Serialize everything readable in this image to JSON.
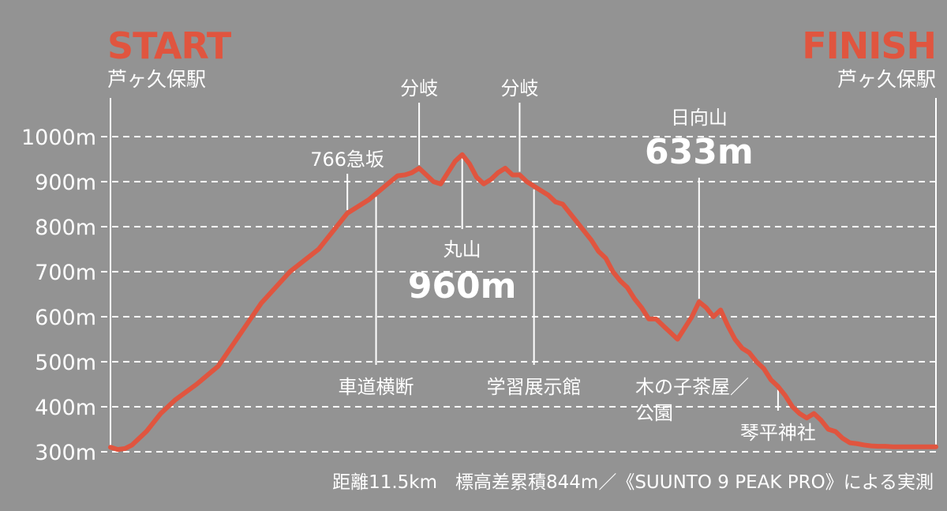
{
  "colors": {
    "background": "#939393",
    "accent": "#e0553f",
    "text": "#ffffff"
  },
  "chart_data": {
    "type": "area",
    "grid": true,
    "ylim": [
      300,
      1000
    ],
    "y_ticks": [
      {
        "value": 1000,
        "label": "1000m"
      },
      {
        "value": 900,
        "label": "900m"
      },
      {
        "value": 800,
        "label": "800m"
      },
      {
        "value": 700,
        "label": "700m"
      },
      {
        "value": 600,
        "label": "600m"
      },
      {
        "value": 500,
        "label": "500m"
      },
      {
        "value": 400,
        "label": "400m"
      },
      {
        "value": 300,
        "label": "300m"
      }
    ],
    "xlim": [
      0,
      11.5
    ],
    "start": {
      "label": "START",
      "station": "芦ヶ久保駅"
    },
    "finish": {
      "label": "FINISH",
      "station": "芦ヶ久保駅"
    },
    "note": "距離11.5km　標高差累積844m／《SUUNTO 9 PEAK PRO》による実測",
    "series": [
      {
        "x": [
          0.0,
          0.1,
          0.2,
          0.3,
          0.5,
          0.7,
          0.9,
          1.2,
          1.5,
          1.8,
          2.1,
          2.5,
          2.9,
          3.3,
          3.6,
          3.9,
          4.0,
          4.1,
          4.2,
          4.3,
          4.4,
          4.5,
          4.6,
          4.7,
          4.8,
          4.9,
          5.0,
          5.1,
          5.2,
          5.3,
          5.4,
          5.5,
          5.6,
          5.7,
          5.8,
          5.9,
          6.0,
          6.1,
          6.2,
          6.3,
          6.4,
          6.5,
          6.6,
          6.7,
          6.8,
          6.9,
          7.0,
          7.1,
          7.2,
          7.3,
          7.4,
          7.5,
          7.6,
          7.7,
          7.8,
          7.9,
          8.0,
          8.1,
          8.2,
          8.3,
          8.4,
          8.5,
          8.6,
          8.7,
          8.8,
          8.9,
          9.0,
          9.1,
          9.2,
          9.3,
          9.4,
          9.5,
          9.6,
          9.7,
          9.8,
          9.9,
          10.0,
          10.1,
          10.2,
          10.3,
          10.4,
          10.5,
          10.6,
          10.7,
          10.8,
          10.9,
          11.0,
          11.1,
          11.2,
          11.3,
          11.4,
          11.5
        ],
        "y": [
          310,
          305,
          307,
          315,
          345,
          385,
          415,
          450,
          490,
          560,
          630,
          700,
          750,
          830,
          860,
          900,
          913,
          915,
          920,
          930,
          915,
          900,
          895,
          920,
          945,
          960,
          940,
          910,
          895,
          905,
          920,
          930,
          915,
          915,
          900,
          890,
          880,
          870,
          855,
          850,
          830,
          810,
          790,
          770,
          745,
          730,
          700,
          680,
          665,
          640,
          620,
          595,
          595,
          580,
          565,
          550,
          575,
          600,
          633,
          620,
          600,
          615,
          580,
          550,
          530,
          520,
          500,
          485,
          460,
          445,
          425,
          400,
          385,
          375,
          385,
          370,
          350,
          345,
          330,
          320,
          318,
          315,
          313,
          312,
          312,
          311,
          311,
          311,
          311,
          311,
          311,
          311
        ]
      }
    ],
    "annotations": [
      {
        "x": 3.3,
        "side": "above",
        "texts": [
          "766急坂"
        ]
      },
      {
        "x": 3.7,
        "side": "below",
        "texts": [
          "車道横断"
        ]
      },
      {
        "x": 4.3,
        "side": "above",
        "texts": [
          "分岐"
        ]
      },
      {
        "x": 5.7,
        "side": "above",
        "texts": [
          "分岐"
        ]
      },
      {
        "x": 5.9,
        "side": "below",
        "texts": [
          "学習展示館"
        ]
      },
      {
        "x": 4.9,
        "side": "peak",
        "texts": [
          "丸山",
          "960m"
        ]
      },
      {
        "x": 8.2,
        "side": "peak-above",
        "texts": [
          "日向山",
          "633m"
        ]
      },
      {
        "x": 9.1,
        "side": "below-slash",
        "texts": [
          "木の子茶屋／",
          "公園"
        ]
      },
      {
        "x": 9.3,
        "side": "below",
        "texts": [
          "琴平神社"
        ]
      }
    ]
  }
}
